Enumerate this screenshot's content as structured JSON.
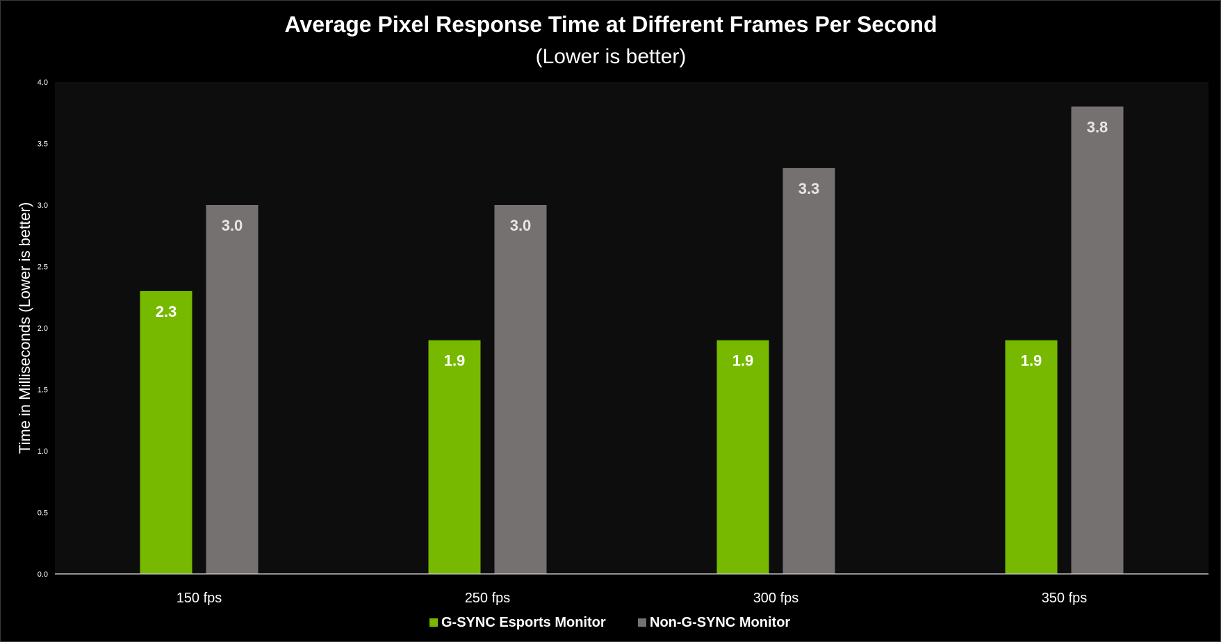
{
  "chart_data": {
    "type": "bar",
    "title": "Average Pixel Response Time at Different Frames Per Second",
    "subtitle": "(Lower is better)",
    "xlabel": "",
    "ylabel": "Time in Milliseconds (Lower is better)",
    "categories": [
      "150 fps",
      "250 fps",
      "300 fps",
      "350 fps"
    ],
    "series": [
      {
        "name": "G-SYNC Esports Monitor",
        "values": [
          2.3,
          1.9,
          1.9,
          1.9
        ],
        "color": "#76b900"
      },
      {
        "name": "Non-G-SYNC Monitor",
        "values": [
          3.0,
          3.0,
          3.3,
          3.8
        ],
        "color": "#767171"
      }
    ],
    "data_labels": [
      [
        "2.3",
        "1.9",
        "1.9",
        "1.9"
      ],
      [
        "3.0",
        "3.0",
        "3.3",
        "3.8"
      ]
    ],
    "ylim": [
      0,
      4
    ],
    "yticks": [
      "0.0",
      "0.5",
      "1.0",
      "1.5",
      "2.0",
      "2.5",
      "3.0",
      "3.5",
      "4.0"
    ],
    "grid": false,
    "legend_position": "bottom",
    "colors": {
      "background": "#000000",
      "plot_area": "#0d0d0d",
      "text": "#ffffff",
      "axis": "#bfbfbf"
    }
  }
}
